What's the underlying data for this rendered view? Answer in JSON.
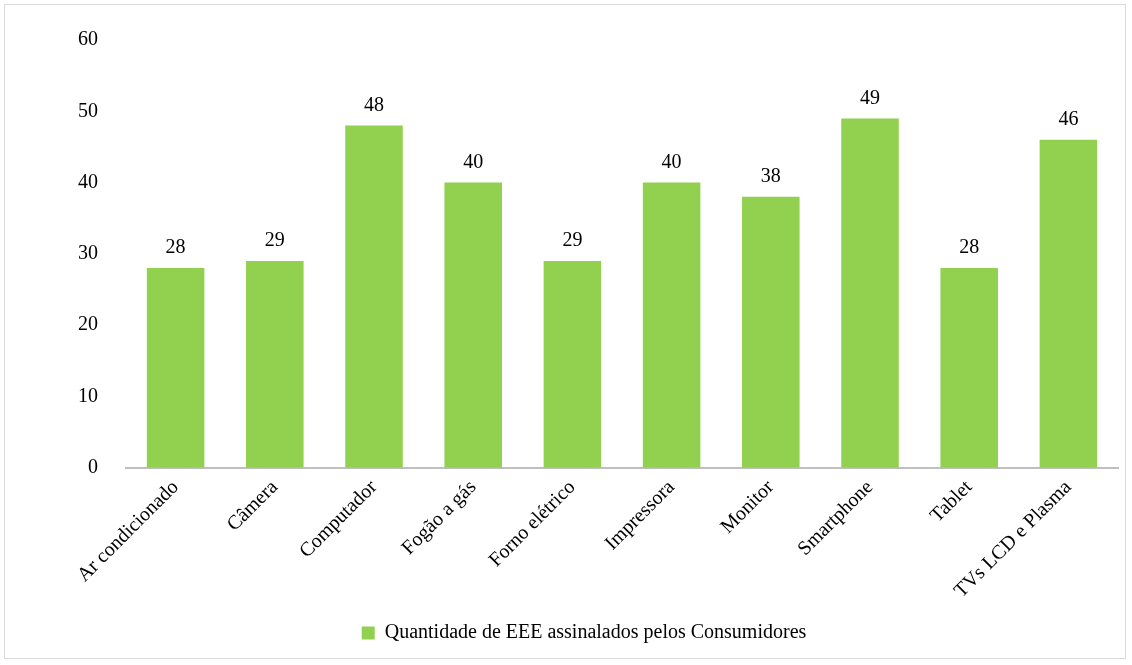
{
  "chart_data": {
    "type": "bar",
    "categories": [
      "Ar condicionado",
      "Câmera",
      "Computador",
      "Fogão a gás",
      "Forno elétrico",
      "Impressora",
      "Monitor",
      "Smartphone",
      "Tablet",
      "TVs LCD e Plasma"
    ],
    "series": [
      {
        "name": "Quantidade de EEE assinalados pelos Consumidores",
        "color": "#92d050",
        "values": [
          28,
          29,
          48,
          40,
          29,
          40,
          38,
          49,
          28,
          46
        ]
      }
    ],
    "ylim": [
      0,
      60
    ],
    "yticks": [
      0,
      10,
      20,
      30,
      40,
      50,
      60
    ],
    "grid": false,
    "legend": "bottom",
    "data_labels": true
  }
}
